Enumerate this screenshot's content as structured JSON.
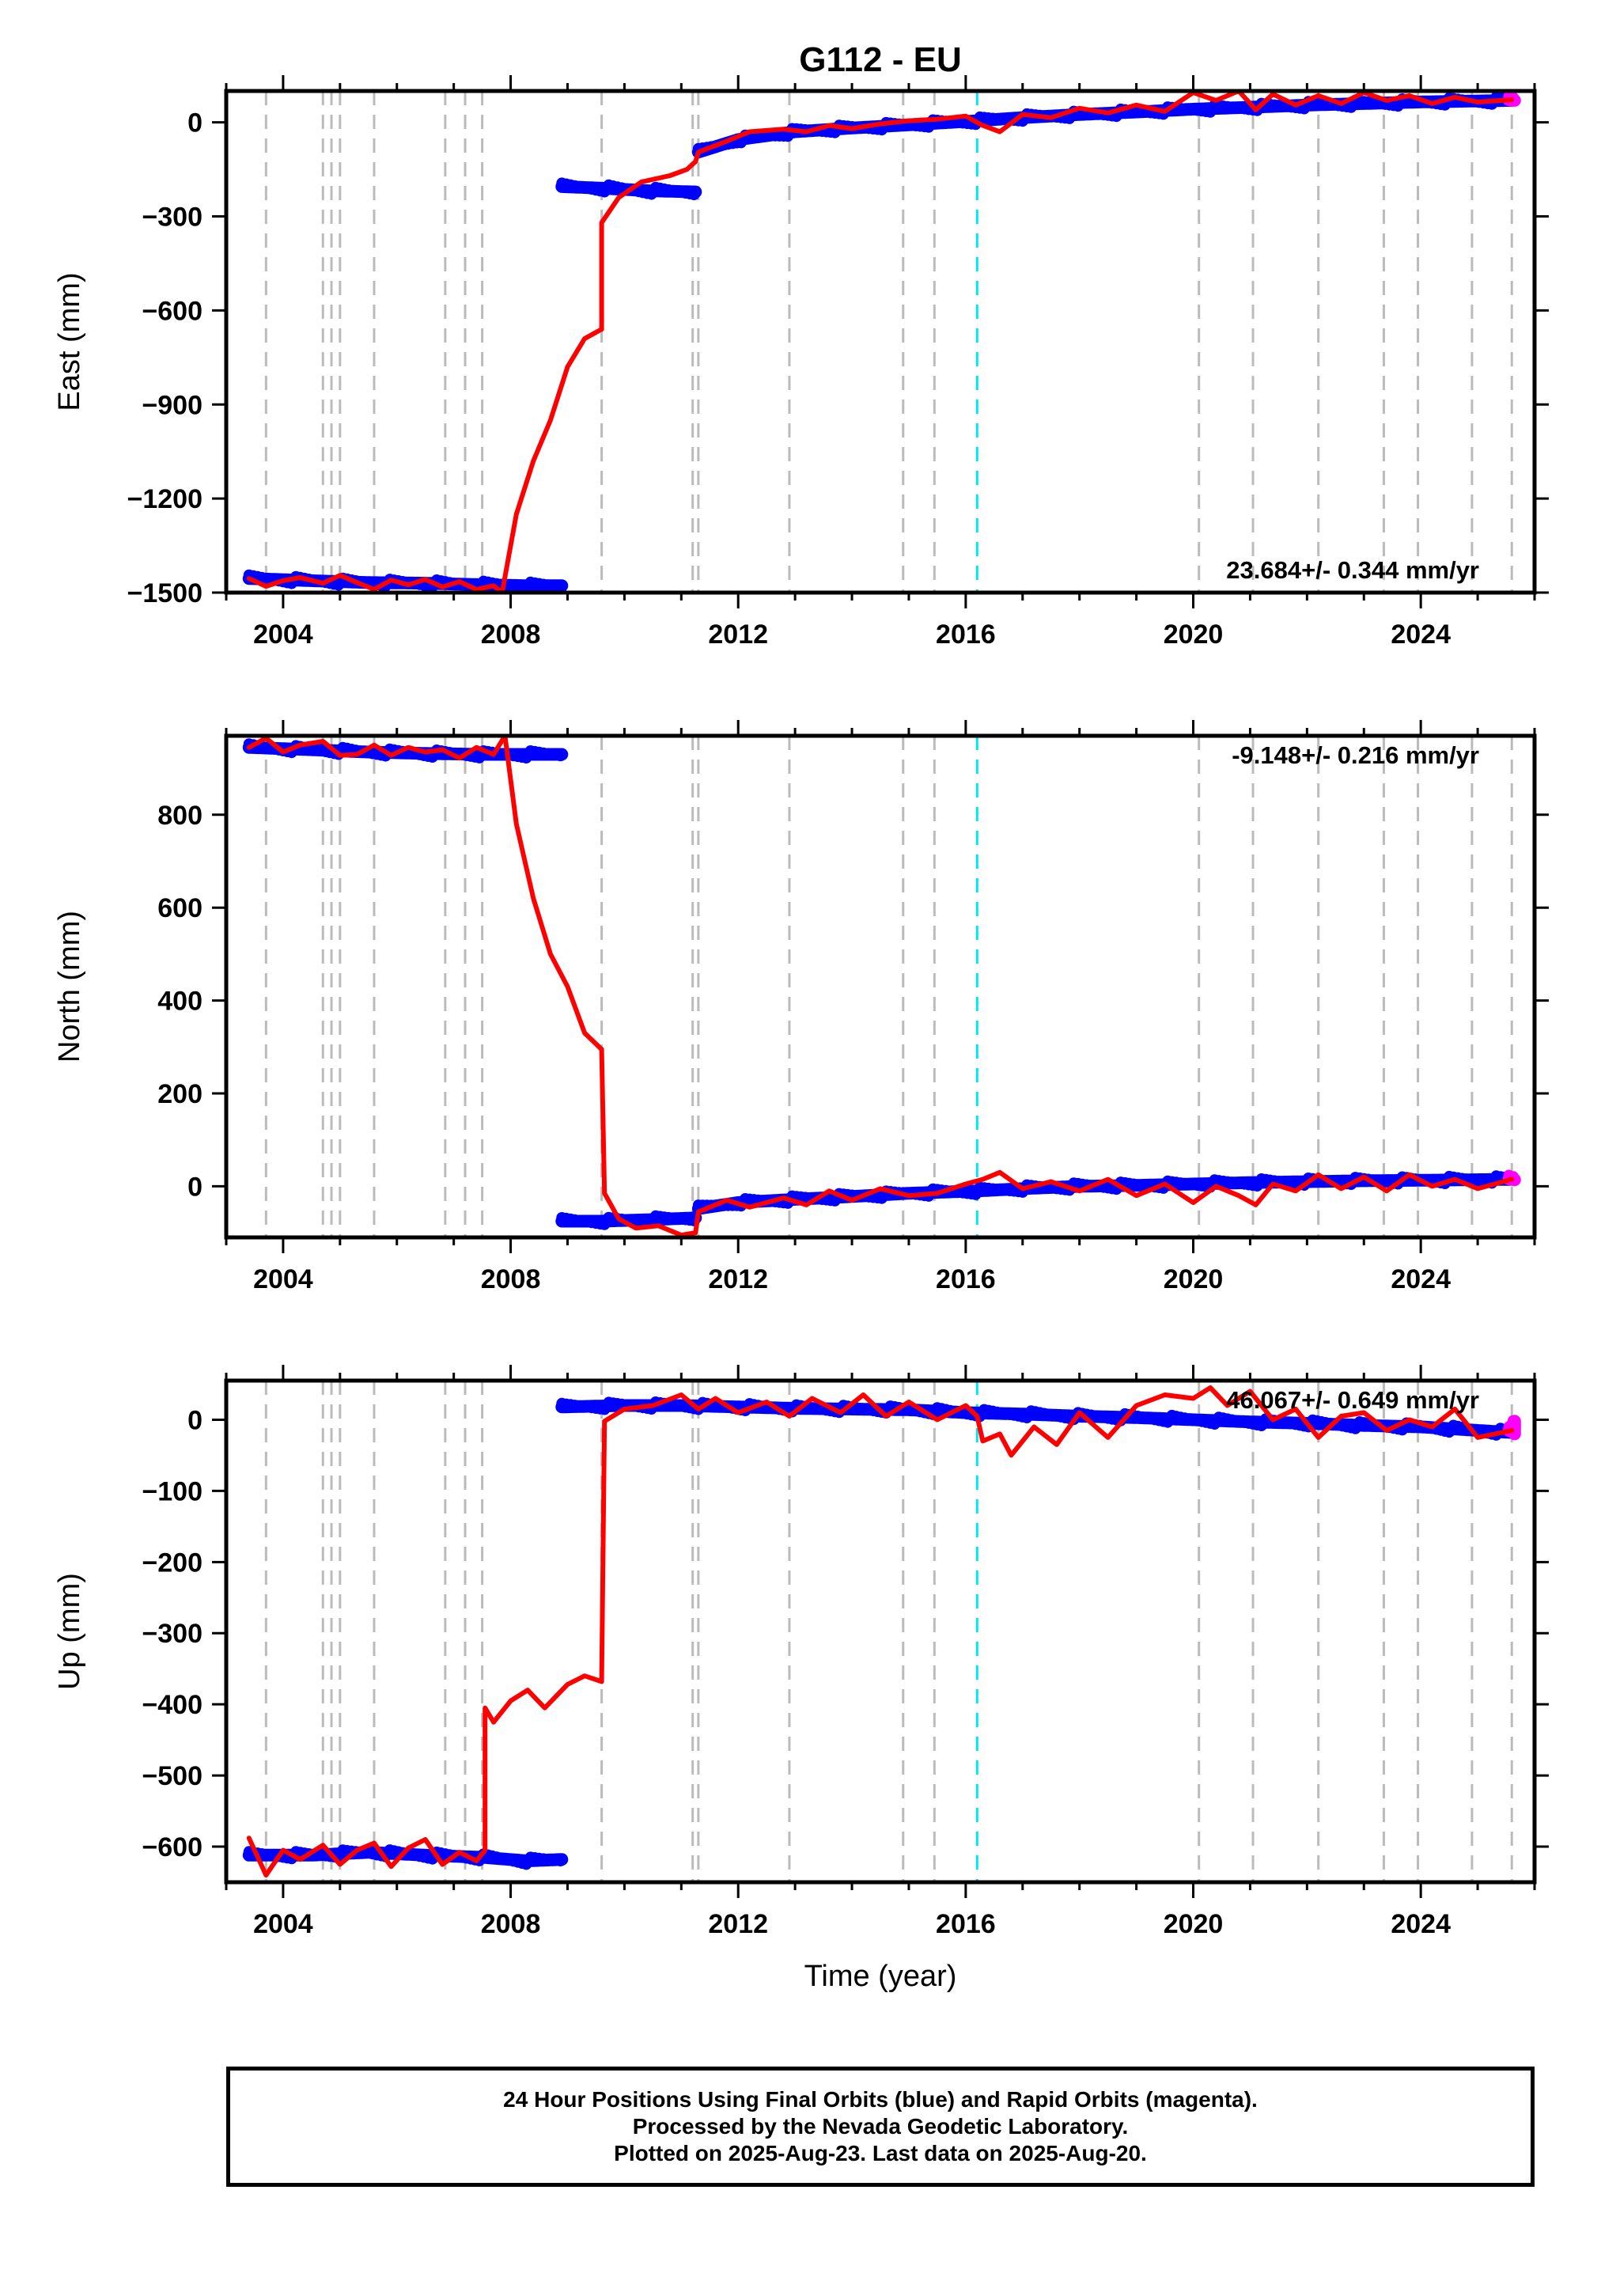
{
  "title": "G112 - EU",
  "xlabel": "Time (year)",
  "colors": {
    "final_orbits": "#0000ff",
    "rapid_orbits": "#ff00ff",
    "model": "#ff0000",
    "event_line": "#bbbbbb",
    "highlight_line": "#00e5ee"
  },
  "footer": {
    "line1": "24 Hour Positions Using Final Orbits (blue) and Rapid Orbits (magenta).",
    "line2": "Processed by the Nevada Geodetic Laboratory.",
    "line3": "Plotted on 2025-Aug-23. Last data on 2025-Aug-20."
  },
  "chart_data": [
    {
      "type": "scatter",
      "ylabel": "East (mm)",
      "velocity_text": "23.684+/- 0.344 mm/yr",
      "xlim": [
        2003.0,
        2026.0
      ],
      "ylim": [
        -1500,
        100
      ],
      "xticks": [
        2004,
        2008,
        2012,
        2016,
        2020,
        2024
      ],
      "yticks": [
        0,
        -300,
        -600,
        -900,
        -1200,
        -1500
      ],
      "vertical_lines": [
        2003.7,
        2004.7,
        2004.85,
        2005.0,
        2005.6,
        2006.85,
        2007.2,
        2007.5,
        2009.6,
        2011.2,
        2011.3,
        2012.9,
        2014.9,
        2015.45,
        2020.1,
        2021.05,
        2022.2,
        2023.35,
        2023.95,
        2024.9,
        2025.6
      ],
      "highlight_lines": [
        2016.2
      ],
      "series": [
        {
          "style": "dots",
          "color": "final_orbits",
          "segments": [
            {
              "x": [
                2003.4,
                2004.5,
                2005.5,
                2006.5,
                2007.5,
                2008.3,
                2008.9
              ],
              "y": [
                -1455,
                -1462,
                -1468,
                -1470,
                -1475,
                -1478,
                -1478
              ]
            },
            {
              "x": [
                2008.9,
                2009.6,
                2010.4,
                2011.25
              ],
              "y": [
                -205,
                -210,
                -218,
                -222
              ]
            },
            {
              "x": [
                2011.3,
                2012.0,
                2013.0,
                2014.0,
                2015.0,
                2016.2,
                2017.0,
                2018.0,
                2019.0,
                2020.0,
                2021.0,
                2022.0,
                2023.0,
                2024.0,
                2025.6
              ],
              "y": [
                -95,
                -55,
                -30,
                -18,
                -8,
                5,
                15,
                25,
                33,
                42,
                48,
                55,
                60,
                65,
                70
              ]
            }
          ]
        },
        {
          "style": "dots",
          "color": "rapid_orbits",
          "segments": [
            {
              "x": [
                2025.55,
                2025.65
              ],
              "y": [
                72,
                70
              ]
            }
          ]
        },
        {
          "style": "line",
          "color": "model",
          "segments": [
            {
              "x": [
                2003.4,
                2003.7,
                2004.0,
                2004.3,
                2004.7,
                2005.0,
                2005.3,
                2005.6,
                2005.9,
                2006.2,
                2006.5,
                2006.8,
                2007.1,
                2007.4,
                2007.7,
                2007.85
              ],
              "y": [
                -1455,
                -1480,
                -1462,
                -1452,
                -1470,
                -1445,
                -1468,
                -1490,
                -1460,
                -1475,
                -1458,
                -1482,
                -1465,
                -1490,
                -1478,
                -1500
              ]
            },
            {
              "x": [
                2007.85,
                2008.1,
                2008.4,
                2008.7,
                2009.0,
                2009.3,
                2009.6
              ],
              "y": [
                -1500,
                -1250,
                -1080,
                -950,
                -780,
                -690,
                -660
              ]
            },
            {
              "x": [
                2009.6,
                2009.6,
                2009.9,
                2010.3,
                2010.8,
                2011.1,
                2011.25
              ],
              "y": [
                -660,
                -320,
                -240,
                -190,
                -170,
                -150,
                -125
              ]
            },
            {
              "x": [
                2011.25,
                2011.3,
                2011.8,
                2012.2,
                2012.8,
                2013.2,
                2013.6,
                2014.0,
                2014.5,
                2015.0,
                2015.5,
                2016.0,
                2016.3,
                2016.6,
                2017.0,
                2017.5,
                2018.0,
                2018.5,
                2019.0,
                2019.5,
                2020.0,
                2020.4,
                2020.8,
                2021.1,
                2021.4,
                2021.8,
                2022.2,
                2022.6,
                2023.0,
                2023.4,
                2023.8,
                2024.2,
                2024.6,
                2025.0,
                2025.6
              ],
              "y": [
                -125,
                -95,
                -60,
                -30,
                -22,
                -30,
                -10,
                -20,
                -5,
                5,
                10,
                20,
                -10,
                -30,
                25,
                15,
                45,
                30,
                55,
                35,
                95,
                70,
                100,
                40,
                90,
                55,
                85,
                60,
                95,
                70,
                85,
                60,
                80,
                65,
                72
              ]
            }
          ]
        }
      ]
    },
    {
      "type": "scatter",
      "ylabel": "North (mm)",
      "velocity_text": "-9.148+/- 0.216 mm/yr",
      "xlim": [
        2003.0,
        2026.0
      ],
      "ylim": [
        -110,
        970
      ],
      "xticks": [
        2004,
        2008,
        2012,
        2016,
        2020,
        2024
      ],
      "yticks": [
        0,
        200,
        400,
        600,
        800
      ],
      "vertical_lines": [
        2003.7,
        2004.7,
        2004.85,
        2005.0,
        2005.6,
        2006.85,
        2007.2,
        2007.5,
        2009.6,
        2011.2,
        2011.3,
        2012.9,
        2014.9,
        2015.45,
        2020.1,
        2021.05,
        2022.2,
        2023.35,
        2023.95,
        2024.9,
        2025.6
      ],
      "highlight_lines": [
        2016.2
      ],
      "series": [
        {
          "style": "dots",
          "color": "final_orbits",
          "segments": [
            {
              "x": [
                2003.4,
                2004.5,
                2005.5,
                2006.5,
                2007.5,
                2008.3,
                2008.9
              ],
              "y": [
                945,
                940,
                935,
                932,
                930,
                930,
                930
              ]
            },
            {
              "x": [
                2008.9,
                2009.6,
                2010.4,
                2011.25
              ],
              "y": [
                -75,
                -75,
                -72,
                -68
              ]
            },
            {
              "x": [
                2011.3,
                2012.0,
                2013.0,
                2014.0,
                2015.0,
                2016.2,
                2017.0,
                2018.0,
                2019.0,
                2020.0,
                2021.0,
                2022.0,
                2023.0,
                2024.0,
                2025.6
              ],
              "y": [
                -48,
                -35,
                -28,
                -22,
                -15,
                -10,
                -5,
                0,
                2,
                5,
                8,
                10,
                12,
                13,
                15
              ]
            }
          ]
        },
        {
          "style": "dots",
          "color": "rapid_orbits",
          "segments": [
            {
              "x": [
                2025.55,
                2025.65
              ],
              "y": [
                16,
                14
              ]
            }
          ]
        },
        {
          "style": "line",
          "color": "model",
          "segments": [
            {
              "x": [
                2003.4,
                2003.7,
                2004.0,
                2004.3,
                2004.7,
                2005.0,
                2005.3,
                2005.6,
                2005.9,
                2006.2,
                2006.5,
                2006.8,
                2007.1,
                2007.4,
                2007.7,
                2007.9
              ],
              "y": [
                945,
                965,
                935,
                950,
                958,
                928,
                930,
                950,
                928,
                945,
                935,
                940,
                922,
                945,
                930,
                970
              ]
            },
            {
              "x": [
                2007.9,
                2008.1,
                2008.4,
                2008.7,
                2009.0,
                2009.3,
                2009.6
              ],
              "y": [
                970,
                780,
                620,
                500,
                430,
                330,
                295
              ]
            },
            {
              "x": [
                2009.6,
                2009.65,
                2009.9,
                2010.2,
                2010.6,
                2011.0,
                2011.25
              ],
              "y": [
                295,
                -15,
                -70,
                -90,
                -85,
                -105,
                -100
              ]
            },
            {
              "x": [
                2011.25,
                2011.3,
                2011.8,
                2012.2,
                2012.8,
                2013.2,
                2013.6,
                2014.0,
                2014.5,
                2015.0,
                2015.5,
                2016.0,
                2016.3,
                2016.6,
                2017.0,
                2017.5,
                2018.0,
                2018.5,
                2019.0,
                2019.5,
                2020.0,
                2020.4,
                2020.8,
                2021.1,
                2021.4,
                2021.8,
                2022.2,
                2022.6,
                2023.0,
                2023.4,
                2023.8,
                2024.2,
                2024.6,
                2025.0,
                2025.6
              ],
              "y": [
                -100,
                -55,
                -30,
                -45,
                -25,
                -40,
                -10,
                -30,
                -5,
                -20,
                -15,
                5,
                15,
                30,
                -5,
                10,
                -10,
                15,
                -20,
                5,
                -35,
                0,
                -20,
                -40,
                5,
                -10,
                25,
                -5,
                20,
                -10,
                25,
                0,
                15,
                -5,
                15
              ]
            }
          ]
        }
      ]
    },
    {
      "type": "scatter",
      "ylabel": "Up (mm)",
      "velocity_text": "46.067+/- 0.649 mm/yr",
      "xlim": [
        2003.0,
        2026.0
      ],
      "ylim": [
        -650,
        55
      ],
      "xticks": [
        2004,
        2008,
        2012,
        2016,
        2020,
        2024
      ],
      "yticks": [
        0,
        -100,
        -200,
        -300,
        -400,
        -500,
        -600
      ],
      "vertical_lines": [
        2003.7,
        2004.7,
        2004.85,
        2005.0,
        2005.6,
        2006.85,
        2007.2,
        2007.5,
        2009.6,
        2011.2,
        2011.3,
        2012.9,
        2014.9,
        2015.45,
        2020.1,
        2021.05,
        2022.2,
        2023.35,
        2023.95,
        2024.9,
        2025.6
      ],
      "highlight_lines": [
        2016.2
      ],
      "series": [
        {
          "style": "dots",
          "color": "final_orbits",
          "segments": [
            {
              "x": [
                2003.4,
                2004.5,
                2005.5,
                2006.5,
                2007.5,
                2008.3,
                2008.9
              ],
              "y": [
                -612,
                -612,
                -608,
                -612,
                -615,
                -620,
                -618
              ]
            },
            {
              "x": [
                2008.9,
                2010.0,
                2011.0,
                2012.0,
                2013.0,
                2014.0,
                2015.0,
                2016.0,
                2017.0,
                2018.0,
                2019.0,
                2020.0,
                2021.0,
                2022.0,
                2023.0,
                2024.0,
                2025.0,
                2025.6
              ],
              "y": [
                18,
                20,
                20,
                18,
                16,
                15,
                14,
                10,
                8,
                5,
                3,
                0,
                -3,
                -5,
                -8,
                -10,
                -15,
                -18
              ]
            }
          ]
        },
        {
          "style": "dots",
          "color": "rapid_orbits",
          "segments": [
            {
              "x": [
                2025.55,
                2025.65,
                2025.65
              ],
              "y": [
                -15,
                -2,
                -20
              ]
            }
          ]
        },
        {
          "style": "line",
          "color": "model",
          "segments": [
            {
              "x": [
                2003.4,
                2003.7,
                2004.0,
                2004.3,
                2004.7,
                2005.0,
                2005.3,
                2005.6,
                2005.9,
                2006.2,
                2006.5,
                2006.8,
                2007.1,
                2007.4,
                2007.55
              ],
              "y": [
                -588,
                -640,
                -605,
                -618,
                -598,
                -625,
                -605,
                -595,
                -628,
                -602,
                -590,
                -625,
                -608,
                -620,
                -605
              ]
            },
            {
              "x": [
                2007.55,
                2007.55,
                2007.7,
                2008.0,
                2008.3,
                2008.6,
                2009.0,
                2009.3,
                2009.6
              ],
              "y": [
                -605,
                -405,
                -425,
                -395,
                -380,
                -405,
                -372,
                -360,
                -368
              ]
            },
            {
              "x": [
                2009.6,
                2009.65,
                2010.0,
                2010.5,
                2011.0,
                2011.3,
                2011.6,
                2012.0,
                2012.5,
                2012.9,
                2013.3,
                2013.8,
                2014.2,
                2014.6,
                2015.0,
                2015.5,
                2016.0,
                2016.2,
                2016.3,
                2016.6,
                2016.8,
                2017.2,
                2017.6,
                2018.0,
                2018.5,
                2019.0,
                2019.5,
                2020.0,
                2020.3,
                2020.6,
                2021.0,
                2021.4,
                2021.8,
                2022.2,
                2022.6,
                2023.0,
                2023.4,
                2023.8,
                2024.2,
                2024.6,
                2025.0,
                2025.6
              ],
              "y": [
                -368,
                -2,
                15,
                20,
                35,
                15,
                30,
                10,
                25,
                5,
                30,
                10,
                35,
                5,
                25,
                0,
                20,
                5,
                -30,
                -20,
                -50,
                -10,
                -35,
                10,
                -25,
                20,
                35,
                30,
                45,
                20,
                40,
                0,
                15,
                -25,
                5,
                10,
                -15,
                0,
                -10,
                15,
                -25,
                -15
              ]
            }
          ]
        }
      ]
    }
  ]
}
